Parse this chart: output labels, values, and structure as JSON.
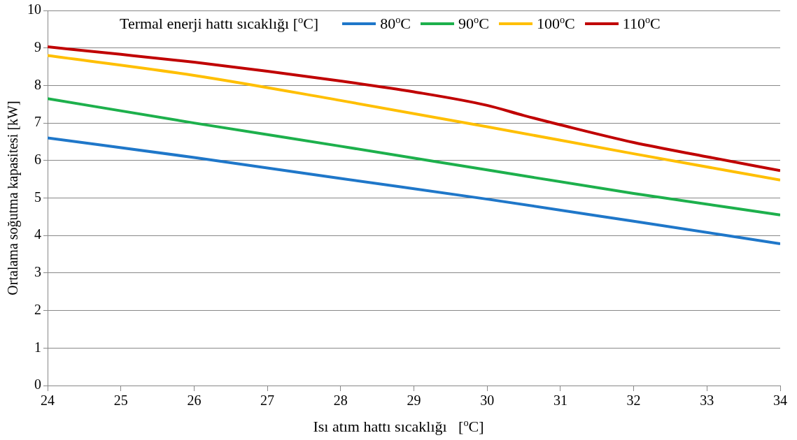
{
  "chart_data": {
    "type": "line",
    "xlabel": "Isı atım hattı sıcaklığı   [$^{o}$C]",
    "ylabel": "Ortalama soğutma kapasitesi [kW]",
    "legend_title": "Termal enerji hattı sıcaklığı [$^{o}$C]",
    "xlim": [
      24,
      34
    ],
    "xticks": [
      24,
      25,
      26,
      27,
      28,
      29,
      30,
      31,
      32,
      33,
      34
    ],
    "ylim": [
      0,
      10
    ],
    "yticks": [
      0,
      1,
      2,
      3,
      4,
      5,
      6,
      7,
      8,
      9,
      10
    ],
    "grid": "y",
    "legend": "top",
    "marker": "none",
    "line_style": "solid",
    "series": [
      {
        "name": "80$^{o}$C",
        "color": "#1f77c9",
        "x": [
          24,
          26,
          28,
          30,
          32,
          34
        ],
        "values": [
          6.6,
          6.08,
          5.52,
          4.97,
          4.38,
          3.78
        ]
      },
      {
        "name": "90$^{o}$C",
        "color": "#1db04c",
        "x": [
          24,
          26,
          28,
          30,
          32,
          34
        ],
        "values": [
          7.65,
          7.0,
          6.38,
          5.75,
          5.12,
          4.55
        ]
      },
      {
        "name": "100$^{o}$C",
        "color": "#ffbf00",
        "x": [
          24,
          26,
          28,
          30,
          32,
          34
        ],
        "values": [
          8.8,
          8.27,
          7.6,
          6.9,
          6.18,
          5.48
        ]
      },
      {
        "name": "110$^{o}$C",
        "color": "#c00000",
        "x": [
          24,
          25,
          26,
          27,
          28,
          29,
          30,
          30.5,
          31,
          32,
          33,
          34
        ],
        "values": [
          9.03,
          8.83,
          8.62,
          8.38,
          8.12,
          7.83,
          7.47,
          7.2,
          6.95,
          6.48,
          6.1,
          5.73
        ]
      }
    ]
  }
}
